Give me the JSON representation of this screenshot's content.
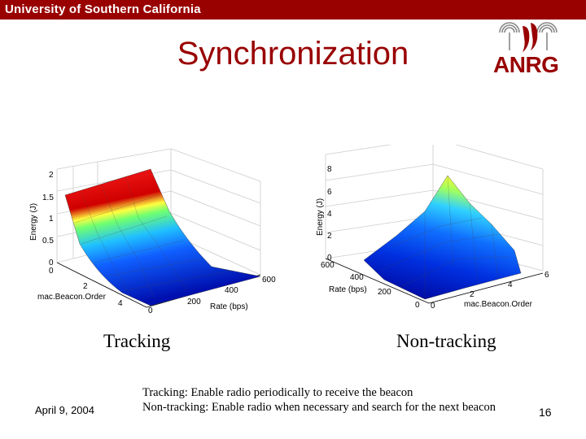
{
  "header": {
    "university": "University of Southern California"
  },
  "slide": {
    "title": "Synchronization",
    "logo_text": "ANRG",
    "date": "April 9, 2004",
    "page_number": "16",
    "notes": [
      "Tracking:  Enable radio periodically to receive the beacon",
      "Non-tracking: Enable radio when necessary and search for the next beacon"
    ]
  },
  "plots": {
    "left": {
      "caption": "Tracking",
      "zlabel": "Energy (J)",
      "xlabel": "mac.Beacon.Order",
      "ylabel": "Rate (bps)",
      "z_ticks": [
        "2",
        "1.5",
        "1",
        "0.5",
        "0"
      ],
      "x_ticks": [
        "0",
        "2",
        "4"
      ],
      "y_ticks": [
        "0",
        "200",
        "400",
        "600"
      ]
    },
    "right": {
      "caption": "Non-tracking",
      "zlabel": "Energy (J)",
      "xlabel": "mac.Beacon.Order",
      "ylabel": "Rate (bps)",
      "z_ticks": [
        "8",
        "6",
        "4",
        "2",
        "0"
      ],
      "x_ticks": [
        "0",
        "2",
        "4",
        "6"
      ],
      "y_ticks": [
        "0",
        "200",
        "400",
        "600"
      ]
    }
  },
  "chart_data": [
    {
      "type": "surface",
      "title": "Tracking",
      "xlabel": "mac.Beacon.Order",
      "ylabel": "Rate (bps)",
      "zlabel": "Energy (J)",
      "x": [
        0,
        1,
        2,
        3,
        4,
        5,
        6
      ],
      "y": [
        0,
        100,
        200,
        300,
        400,
        500,
        600
      ],
      "zlim": [
        0,
        2
      ],
      "z_by_x": [
        2.0,
        1.0,
        0.5,
        0.25,
        0.12,
        0.06,
        0.03
      ],
      "note": ""
    },
    {
      "type": "surface",
      "title": "Non-tracking",
      "xlabel": "mac.Beacon.Order",
      "ylabel": "Rate (bps)",
      "zlabel": "Energy (J)",
      "x": [
        0,
        1,
        2,
        3,
        4,
        5,
        6
      ],
      "y": [
        0,
        100,
        200,
        300,
        400,
        500,
        600
      ],
      "zlim": [
        0,
        8
      ],
      "peak": {
        "x": 6,
        "y": 600,
        "z": 7
      },
      "note": ""
    }
  ]
}
